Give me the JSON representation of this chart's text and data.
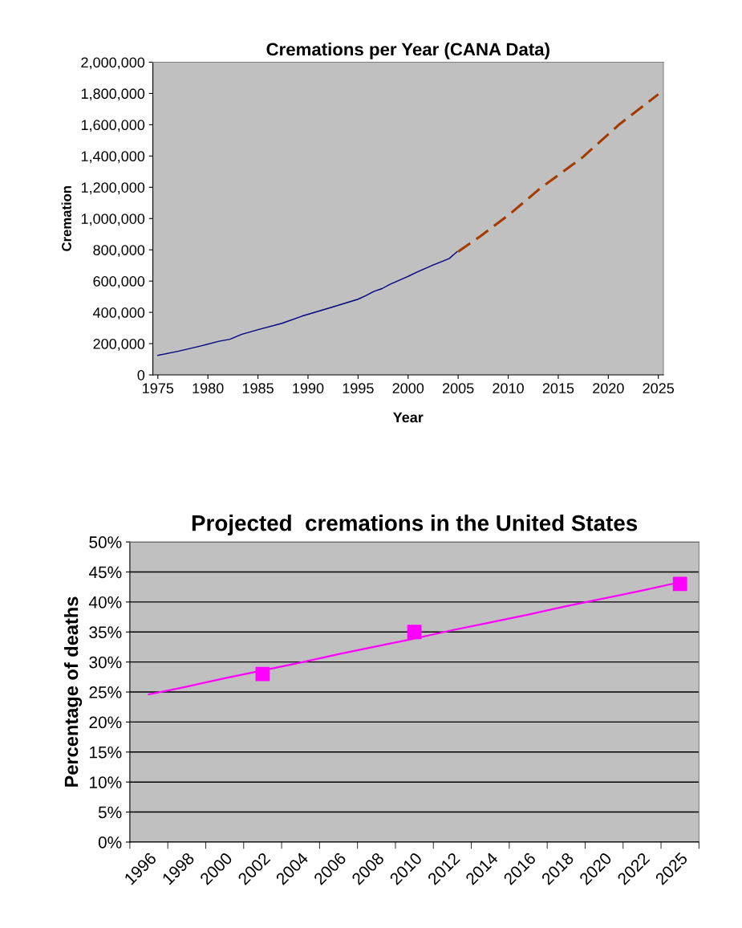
{
  "chart_data": [
    {
      "type": "line",
      "title": "Cremations per Year (CANA Data)",
      "xlabel": "Year",
      "ylabel": "Cremation",
      "xlim": [
        1974.5,
        2025.5
      ],
      "xticks": [
        1975,
        1980,
        1985,
        1990,
        1995,
        2000,
        2005,
        2010,
        2015,
        2020,
        2025
      ],
      "ylim": [
        0,
        2000000
      ],
      "yticks": [
        0,
        {
          "value": 200000,
          "label": "200,000"
        },
        {
          "value": 400000,
          "label": "400,000"
        },
        {
          "value": 600000,
          "label": "600,000"
        },
        {
          "value": 800000,
          "label": "800,000"
        },
        {
          "value": 1000000,
          "label": "1,000,000"
        },
        {
          "value": 1200000,
          "label": "1,200,000"
        },
        {
          "value": 1400000,
          "label": "1,400,000"
        },
        {
          "value": 1600000,
          "label": "1,600,000"
        },
        {
          "value": 1800000,
          "label": "1,800,000"
        },
        {
          "value": 2000000,
          "label": "2,000,000"
        }
      ],
      "grid": false,
      "legend": false,
      "series": [
        {
          "color": "#000080",
          "line_style": "solid",
          "x": [
            1975.0,
            1977.1,
            1979.4,
            1981.1,
            1982.2,
            1983.4,
            1985.1,
            1987.4,
            1989.4,
            1991.3,
            1992.9,
            1995.0,
            1995.8,
            1996.6,
            1997.4,
            1998.2,
            1999.8,
            2000.9,
            2002.5,
            2004.1,
            2004.9
          ],
          "values": [
            125000,
            152000,
            187000,
            215000,
            228000,
            260000,
            291000,
            330000,
            376000,
            412000,
            443000,
            484000,
            508000,
            535000,
            552000,
            580000,
            624000,
            658000,
            703000,
            744000,
            788000
          ]
        },
        {
          "color": "#a33a00",
          "line_style": "dashed",
          "x": [
            2005.0,
            2007.2,
            2010.2,
            2013.1,
            2015.2,
            2017.4,
            2021.1,
            2025.0
          ],
          "values": [
            788000,
            886000,
            1031000,
            1188000,
            1287000,
            1390000,
            1602000,
            1795000
          ]
        }
      ]
    },
    {
      "type": "line",
      "title": "Projected  cremations in the United States",
      "ylabel": "Percentage of deaths",
      "categories": [
        "1996",
        "1998",
        "2000",
        "2002",
        "2004",
        "2006",
        "2008",
        "2010",
        "2012",
        "2014",
        "2016",
        "2018",
        "2020",
        "2022",
        "2025"
      ],
      "ylim": [
        0,
        50
      ],
      "yticks": [
        {
          "value": 0,
          "label": "0%"
        },
        {
          "value": 5,
          "label": "5%"
        },
        {
          "value": 10,
          "label": "10%"
        },
        {
          "value": 15,
          "label": "15%"
        },
        {
          "value": 20,
          "label": "20%"
        },
        {
          "value": 25,
          "label": "25%"
        },
        {
          "value": 30,
          "label": "30%"
        },
        {
          "value": 35,
          "label": "35%"
        },
        {
          "value": 40,
          "label": "40%"
        },
        {
          "value": 45,
          "label": "45%"
        },
        {
          "value": 50,
          "label": "50%"
        }
      ],
      "grid": "y",
      "legend": false,
      "series": [
        {
          "type": "line",
          "color": "#ff00ff",
          "line_style": "solid",
          "marker": "none",
          "values": [
            24.6,
            25.9,
            27.3,
            28.6,
            29.9,
            31.3,
            32.6,
            33.9,
            35.3,
            36.6,
            37.9,
            39.3,
            40.6,
            41.9,
            43.3
          ]
        },
        {
          "type": "scatter",
          "color": "#ff00ff",
          "marker": "square",
          "values": [
            null,
            null,
            null,
            28,
            null,
            null,
            null,
            35,
            null,
            null,
            null,
            null,
            null,
            null,
            43
          ]
        }
      ]
    }
  ]
}
